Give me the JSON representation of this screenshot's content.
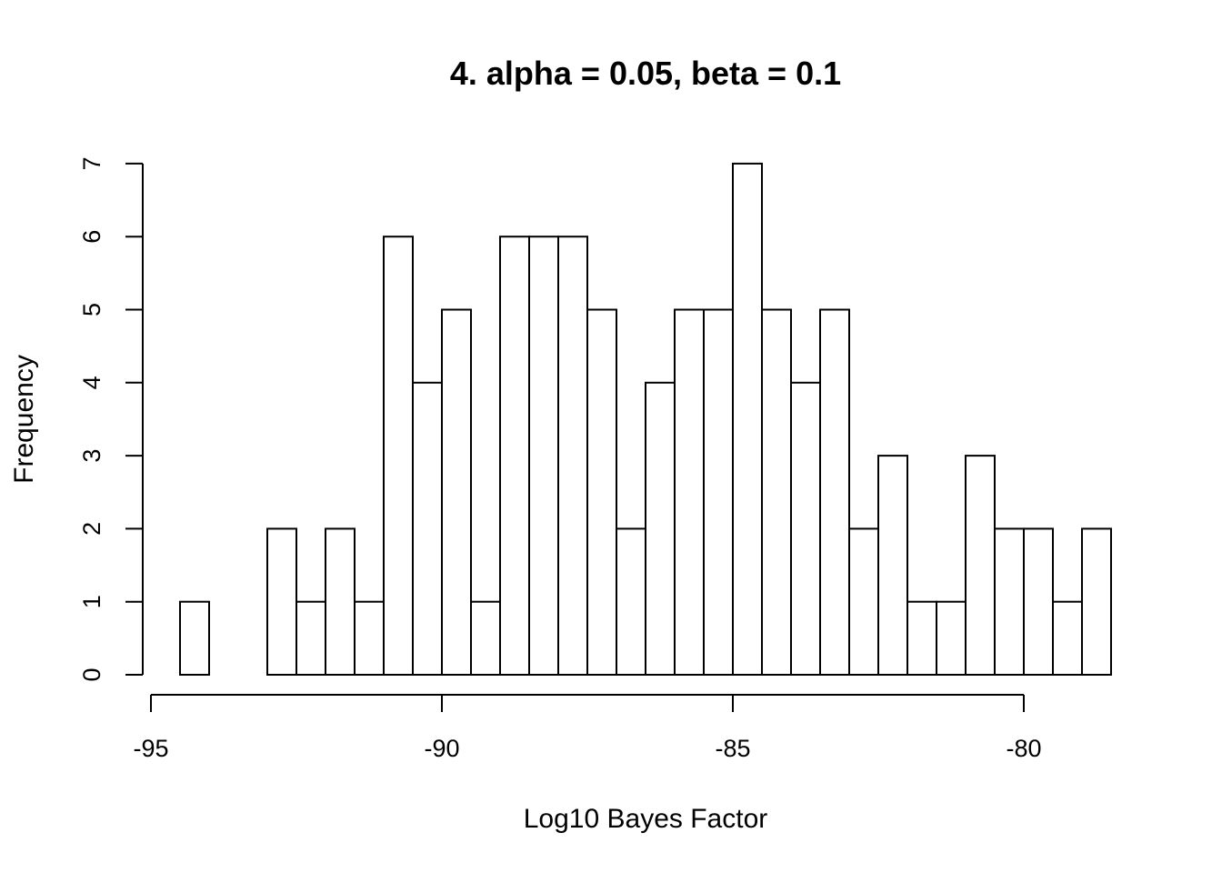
{
  "chart_data": {
    "type": "bar",
    "title": "4. alpha = 0.05, beta = 0.1",
    "xlabel": "Log10 Bayes Factor",
    "ylabel": "Frequency",
    "bin_width": 0.5,
    "bins": [
      {
        "x0": -94.5,
        "x1": -94.0,
        "count": 1
      },
      {
        "x0": -94.0,
        "x1": -93.5,
        "count": 0
      },
      {
        "x0": -93.5,
        "x1": -93.0,
        "count": 0
      },
      {
        "x0": -93.0,
        "x1": -92.5,
        "count": 2
      },
      {
        "x0": -92.5,
        "x1": -92.0,
        "count": 1
      },
      {
        "x0": -92.0,
        "x1": -91.5,
        "count": 2
      },
      {
        "x0": -91.5,
        "x1": -91.0,
        "count": 1
      },
      {
        "x0": -91.0,
        "x1": -90.5,
        "count": 6
      },
      {
        "x0": -90.5,
        "x1": -90.0,
        "count": 4
      },
      {
        "x0": -90.0,
        "x1": -89.5,
        "count": 5
      },
      {
        "x0": -89.5,
        "x1": -89.0,
        "count": 1
      },
      {
        "x0": -89.0,
        "x1": -88.5,
        "count": 6
      },
      {
        "x0": -88.5,
        "x1": -88.0,
        "count": 6
      },
      {
        "x0": -88.0,
        "x1": -87.5,
        "count": 6
      },
      {
        "x0": -87.5,
        "x1": -87.0,
        "count": 5
      },
      {
        "x0": -87.0,
        "x1": -86.5,
        "count": 2
      },
      {
        "x0": -86.5,
        "x1": -86.0,
        "count": 4
      },
      {
        "x0": -86.0,
        "x1": -85.5,
        "count": 5
      },
      {
        "x0": -85.5,
        "x1": -85.0,
        "count": 5
      },
      {
        "x0": -85.0,
        "x1": -84.5,
        "count": 7
      },
      {
        "x0": -84.5,
        "x1": -84.0,
        "count": 5
      },
      {
        "x0": -84.0,
        "x1": -83.5,
        "count": 4
      },
      {
        "x0": -83.5,
        "x1": -83.0,
        "count": 5
      },
      {
        "x0": -83.0,
        "x1": -82.5,
        "count": 2
      },
      {
        "x0": -82.5,
        "x1": -82.0,
        "count": 3
      },
      {
        "x0": -82.0,
        "x1": -81.5,
        "count": 1
      },
      {
        "x0": -81.5,
        "x1": -81.0,
        "count": 1
      },
      {
        "x0": -81.0,
        "x1": -80.5,
        "count": 3
      },
      {
        "x0": -80.5,
        "x1": -80.0,
        "count": 2
      },
      {
        "x0": -80.0,
        "x1": -79.5,
        "count": 2
      },
      {
        "x0": -79.5,
        "x1": -79.0,
        "count": 1
      },
      {
        "x0": -79.0,
        "x1": -78.5,
        "count": 2
      }
    ],
    "xlim": [
      -95,
      -80
    ],
    "ylim": [
      0,
      7
    ],
    "x_ticks": [
      -95,
      -90,
      -85,
      -80
    ],
    "x_tick_labels": [
      "-95",
      "-90",
      "-85",
      "-80"
    ],
    "y_ticks": [
      0,
      1,
      2,
      3,
      4,
      5,
      6,
      7
    ],
    "y_tick_labels": [
      "0",
      "1",
      "2",
      "3",
      "4",
      "5",
      "6",
      "7"
    ],
    "grid": false,
    "bar_fill": "#ffffff",
    "bar_stroke": "#000000"
  }
}
